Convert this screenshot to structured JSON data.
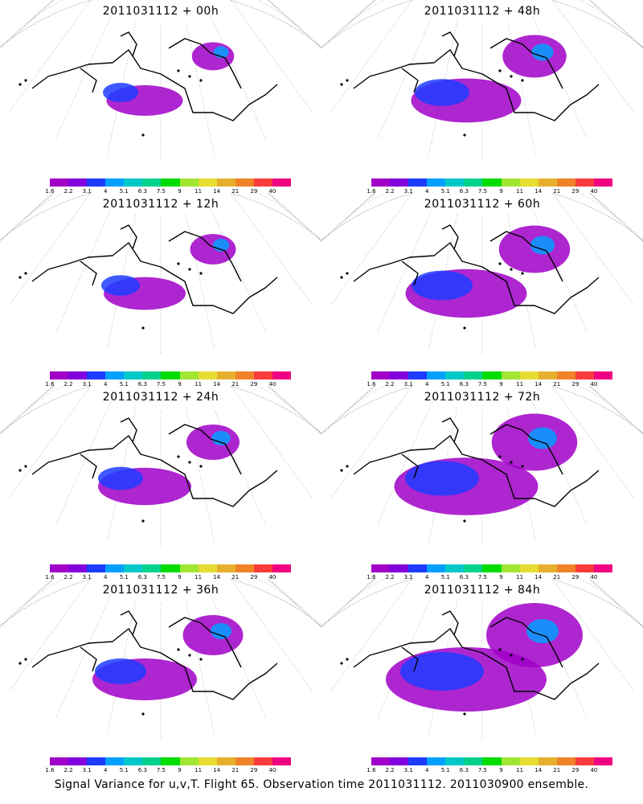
{
  "panels": [
    {
      "title": "2011031112 + 00h",
      "spread": 0.25
    },
    {
      "title": "2011031112 + 48h",
      "spread": 0.55
    },
    {
      "title": "2011031112 + 12h",
      "spread": 0.3
    },
    {
      "title": "2011031112 + 60h",
      "spread": 0.65
    },
    {
      "title": "2011031112 + 24h",
      "spread": 0.4
    },
    {
      "title": "2011031112 + 72h",
      "spread": 0.85
    },
    {
      "title": "2011031112 + 36h",
      "spread": 0.5
    },
    {
      "title": "2011031112 + 84h",
      "spread": 1.0
    }
  ],
  "colorbar": {
    "labels": [
      "1.6",
      "2.2",
      "3.1",
      "4",
      "5.1",
      "6.3",
      "7.5",
      "9",
      "11",
      "14",
      "21",
      "29",
      "40"
    ],
    "colors": [
      "#a000c8",
      "#8200dc",
      "#1e3cff",
      "#00a0ff",
      "#00c8c8",
      "#00d28c",
      "#00dc00",
      "#a0e632",
      "#e6dc32",
      "#e6af2d",
      "#f08228",
      "#fa3c3c",
      "#f00082"
    ]
  },
  "caption": "Signal Variance for u,v,T. Flight 65. Observation time 2011031112. 2011030900 ensemble."
}
